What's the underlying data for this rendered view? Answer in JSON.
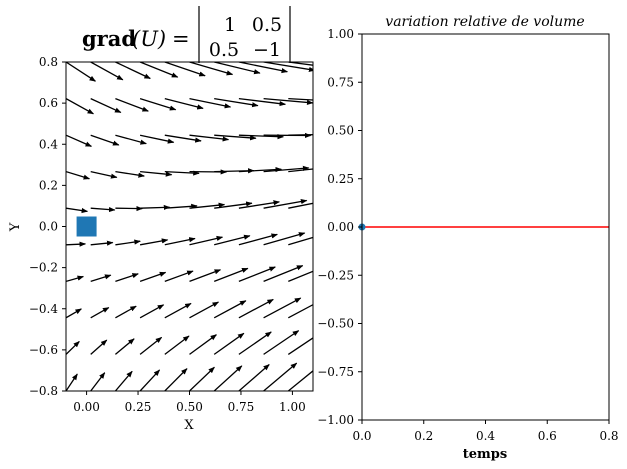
{
  "chart_data": [
    {
      "type": "quiver",
      "title": {
        "prefix": "grad",
        "arg": "(U)",
        "eq": "=",
        "matrix": [
          [
            "1",
            "0.5"
          ],
          [
            "0.5",
            "−1"
          ]
        ]
      },
      "xlabel": "X",
      "ylabel": "Y",
      "xlim": [
        -0.1,
        1.1
      ],
      "ylim": [
        -0.8,
        0.8
      ],
      "xticks": [
        "0.00",
        "0.25",
        "0.50",
        "0.75",
        "1.00"
      ],
      "xtick_values": [
        0,
        0.25,
        0.5,
        0.75,
        1.0
      ],
      "yticks": [
        "0.8",
        "0.6",
        "0.4",
        "0.2",
        "0.0",
        "−0.2",
        "−0.4",
        "−0.6",
        "−0.8"
      ],
      "ytick_values": [
        0.8,
        0.6,
        0.4,
        0.2,
        0,
        -0.2,
        -0.4,
        -0.6,
        -0.8
      ],
      "grid_x": [
        -0.1,
        0.02,
        0.14,
        0.26,
        0.38,
        0.5,
        0.62,
        0.74,
        0.86,
        0.98,
        1.1
      ],
      "grid_y": [
        0.8,
        0.622,
        0.444,
        0.267,
        0.089,
        -0.089,
        -0.267,
        -0.444,
        -0.622,
        -0.8
      ],
      "marker": {
        "x": 0,
        "y": 0,
        "shape": "square",
        "color": "#1f77b4"
      },
      "arrow_color": "#000000",
      "grid": false
    },
    {
      "type": "line",
      "title": "variation relative de volume",
      "xlabel": "temps",
      "ylabel": "",
      "xlim": [
        0,
        0.8
      ],
      "ylim": [
        -1,
        1
      ],
      "xticks": [
        "0.0",
        "0.2",
        "0.4",
        "0.6",
        "0.8"
      ],
      "xtick_values": [
        0,
        0.2,
        0.4,
        0.6,
        0.8
      ],
      "yticks": [
        "1.00",
        "0.75",
        "0.50",
        "0.25",
        "0.00",
        "−0.25",
        "−0.50",
        "−0.75",
        "−1.00"
      ],
      "ytick_values": [
        1,
        0.75,
        0.5,
        0.25,
        0,
        -0.25,
        -0.5,
        -0.75,
        -1
      ],
      "series": [
        {
          "x": [
            0,
            0.8
          ],
          "y": [
            0,
            0
          ],
          "color": "#ff0000"
        }
      ],
      "point": {
        "x": 0,
        "y": 0,
        "color": "#1f77b4"
      },
      "grid": false
    }
  ]
}
